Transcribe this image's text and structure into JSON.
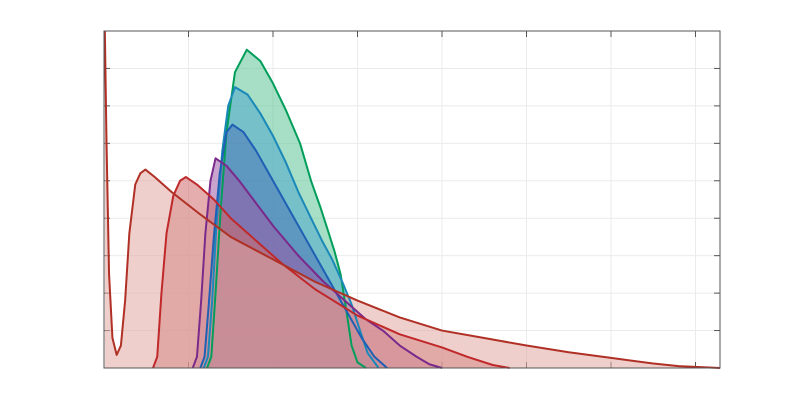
{
  "chart_data": {
    "type": "area",
    "xlim": [
      0,
      7.29
    ],
    "ylim": [
      0,
      9
    ],
    "xticks": [
      1,
      2,
      3,
      4,
      5,
      6,
      7
    ],
    "yticks": [
      1,
      2,
      3,
      4,
      5,
      6,
      7,
      8
    ],
    "grid": true,
    "series": [
      {
        "color": "#009e5a",
        "fill": "#5cc496",
        "x": [
          1.22,
          1.27,
          1.32,
          1.38,
          1.45,
          1.55,
          1.69,
          1.85,
          2.0,
          2.15,
          2.32,
          2.45,
          2.56,
          2.66,
          2.73,
          2.8,
          2.87,
          2.93,
          3.0,
          3.1
        ],
        "values": [
          0,
          0.3,
          2,
          4.2,
          6.3,
          7.9,
          8.5,
          8.2,
          7.6,
          6.9,
          6.0,
          5.0,
          4.3,
          3.6,
          3.1,
          2.5,
          1.5,
          0.6,
          0.15,
          0
        ]
      },
      {
        "color": "#1a88b8",
        "fill": "#4ea6cc",
        "x": [
          1.18,
          1.23,
          1.28,
          1.33,
          1.4,
          1.47,
          1.55,
          1.7,
          1.85,
          2.0,
          2.15,
          2.3,
          2.45,
          2.58,
          2.7,
          2.82,
          2.93,
          3.03,
          3.12,
          3.25
        ],
        "values": [
          0,
          0.3,
          1.8,
          3.8,
          5.8,
          7.0,
          7.5,
          7.3,
          6.8,
          6.2,
          5.5,
          4.7,
          4.0,
          3.4,
          2.9,
          2.3,
          1.7,
          1.0,
          0.4,
          0
        ]
      },
      {
        "color": "#1f5fb4",
        "fill": "#4a74b8",
        "x": [
          1.14,
          1.19,
          1.24,
          1.3,
          1.37,
          1.45,
          1.52,
          1.65,
          1.8,
          2.0,
          2.2,
          2.4,
          2.6,
          2.75,
          2.9,
          3.05,
          3.2,
          3.35
        ],
        "values": [
          0,
          0.3,
          1.7,
          3.5,
          5.2,
          6.3,
          6.5,
          6.3,
          5.8,
          5.0,
          4.2,
          3.4,
          2.6,
          2.0,
          1.4,
          0.8,
          0.3,
          0
        ]
      },
      {
        "color": "#7a2a8a",
        "fill": "#9a5aa6",
        "x": [
          1.05,
          1.1,
          1.15,
          1.2,
          1.26,
          1.32,
          1.45,
          1.6,
          1.8,
          2.0,
          2.3,
          2.6,
          2.9,
          3.1,
          3.3,
          3.5,
          3.7,
          3.85,
          4.0
        ],
        "values": [
          0,
          0.3,
          1.8,
          3.6,
          5.0,
          5.6,
          5.4,
          5.0,
          4.4,
          3.8,
          3.0,
          2.3,
          1.7,
          1.3,
          1.0,
          0.6,
          0.3,
          0.1,
          0
        ]
      },
      {
        "color": "#c0282a",
        "fill": "#d06a6a",
        "x": [
          0.58,
          0.63,
          0.68,
          0.74,
          0.82,
          0.9,
          0.97,
          1.1,
          1.3,
          1.5,
          1.8,
          2.1,
          2.5,
          3.0,
          3.5,
          4.0,
          4.3,
          4.6,
          4.8
        ],
        "values": [
          0,
          0.3,
          2.0,
          3.6,
          4.6,
          5.0,
          5.1,
          4.9,
          4.5,
          4.0,
          3.4,
          2.8,
          2.1,
          1.4,
          0.9,
          0.55,
          0.3,
          0.08,
          0
        ]
      },
      {
        "color": "#b03025",
        "fill": "#e0a8a3",
        "x": [
          0.01,
          0.03,
          0.06,
          0.1,
          0.15,
          0.2,
          0.25,
          0.3,
          0.37,
          0.43,
          0.49,
          0.6,
          0.8,
          1.14,
          1.5,
          2.0,
          2.5,
          3.0,
          3.5,
          4.0,
          4.5,
          5.0,
          5.5,
          6.0,
          6.5,
          6.8,
          7.29
        ],
        "values": [
          9,
          6,
          2.5,
          0.8,
          0.35,
          0.6,
          1.8,
          3.6,
          4.9,
          5.2,
          5.3,
          5.1,
          4.7,
          4.1,
          3.5,
          2.9,
          2.3,
          1.8,
          1.35,
          1.0,
          0.8,
          0.6,
          0.42,
          0.27,
          0.12,
          0.05,
          0
        ]
      }
    ]
  }
}
